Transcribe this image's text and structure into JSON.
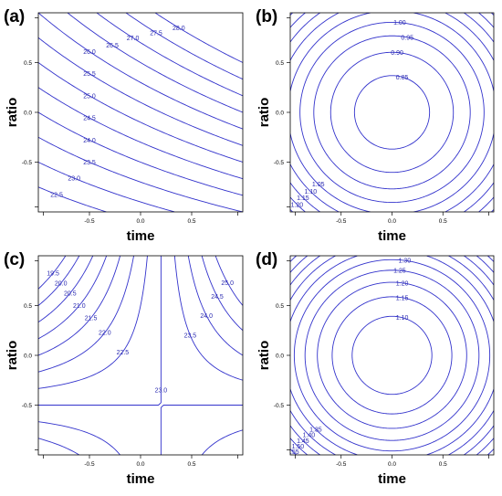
{
  "chart_data": [
    {
      "type": "contour",
      "panel_label": "(a)",
      "xlabel": "time",
      "ylabel": "ratio",
      "xlim": [
        -1,
        1
      ],
      "ylim": [
        -1,
        1
      ],
      "x_ticks": [
        -0.5,
        0.0,
        0.5
      ],
      "y_ticks": [
        -0.5,
        0.0,
        0.5
      ],
      "x_tick_labels": [
        "-0.5",
        "0.0",
        "0.5"
      ],
      "y_tick_labels": [
        "-0.5",
        "0.0",
        "0.5"
      ],
      "model": {
        "form": "linear_cross",
        "b0": 25.25,
        "bx": 1.25,
        "by": 2.5,
        "bxy": 0.5
      },
      "levels": [
        21.5,
        22.0,
        22.5,
        23.0,
        23.5,
        24.0,
        24.5,
        25.0,
        25.5,
        26.0,
        26.5,
        27.0,
        27.5,
        28.0
      ],
      "level_labels": [
        "21.5",
        "22.0",
        "22.5",
        "23.0",
        "23.5",
        "24.0",
        "24.5",
        "25.0",
        "25.5",
        "26.0",
        "26.5",
        "27.0",
        "27.5",
        "28.0"
      ]
    },
    {
      "type": "contour",
      "panel_label": "(b)",
      "xlabel": "time",
      "ylabel": "ratio",
      "xlim": [
        -1,
        1
      ],
      "ylim": [
        -1,
        1
      ],
      "x_ticks": [
        -0.5,
        0.0,
        0.5
      ],
      "y_ticks": [
        -0.5,
        0.0,
        0.5
      ],
      "x_tick_labels": [
        "-0.5",
        "0.0",
        "0.5"
      ],
      "y_tick_labels": [
        "-0.5",
        "0.0",
        "0.5"
      ],
      "model": {
        "form": "radial",
        "center": [
          0.0,
          0.0
        ],
        "min": 0.82,
        "k": 0.22
      },
      "levels": [
        0.85,
        0.9,
        0.95,
        1.0,
        1.05,
        1.1,
        1.15,
        1.2,
        1.25
      ],
      "level_labels": [
        "0.85",
        "0.90",
        "0.95",
        "1.00",
        "1.05",
        "1.10",
        "1.15",
        "1.20",
        "1.25"
      ]
    },
    {
      "type": "contour",
      "panel_label": "(c)",
      "xlabel": "time",
      "ylabel": "ratio",
      "xlim": [
        -1,
        1
      ],
      "ylim": [
        -1,
        1
      ],
      "x_ticks": [
        -0.5,
        0.0,
        0.5
      ],
      "y_ticks": [
        -0.5,
        0.0,
        0.5
      ],
      "x_tick_labels": [
        "-0.5",
        "0.0",
        "0.5"
      ],
      "y_tick_labels": [
        "-0.5",
        "0.0",
        "0.5"
      ],
      "model": {
        "form": "saddle",
        "c": 23.0,
        "a": 5.0,
        "x0": 0.2,
        "y0": -0.5
      },
      "levels": [
        19.5,
        20.0,
        20.5,
        21.0,
        21.5,
        22.0,
        22.5,
        23.0,
        23.5,
        24.0,
        24.5,
        25.0
      ],
      "level_labels": [
        "19.5",
        "20.0",
        "20.5",
        "21.0",
        "21.5",
        "22.0",
        "22.5",
        "23.0",
        "23.5",
        "24.0",
        "24.5",
        "25.0"
      ]
    },
    {
      "type": "contour",
      "panel_label": "(d)",
      "xlabel": "time",
      "ylabel": "ratio",
      "xlim": [
        -1,
        1
      ],
      "ylim": [
        -1,
        1
      ],
      "x_ticks": [
        -0.5,
        0.0,
        0.5
      ],
      "y_ticks": [
        -0.5,
        0.0,
        0.5
      ],
      "x_tick_labels": [
        "-0.5",
        "0.0",
        "0.5"
      ],
      "y_tick_labels": [
        "-0.5",
        "0.0",
        "0.5"
      ],
      "model": {
        "form": "radial",
        "center": [
          0.0,
          0.0
        ],
        "min": 1.06,
        "k": 0.26
      },
      "levels": [
        1.1,
        1.15,
        1.2,
        1.25,
        1.3,
        1.35,
        1.4,
        1.45,
        1.5,
        1.55,
        1.6
      ],
      "level_labels": [
        "1.10",
        "1.15",
        "1.20",
        "1.25",
        "1.30",
        "1.35",
        "1.40",
        "1.45",
        "1.50",
        "1.55",
        "1.60"
      ]
    }
  ],
  "colors": {
    "contour": "#3333cc",
    "labels": "#2a2ab0",
    "frame": "#000000"
  }
}
